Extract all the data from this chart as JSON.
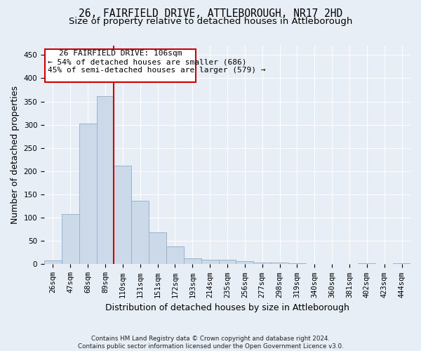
{
  "title_line1": "26, FAIRFIELD DRIVE, ATTLEBOROUGH, NR17 2HD",
  "title_line2": "Size of property relative to detached houses in Attleborough",
  "xlabel": "Distribution of detached houses by size in Attleborough",
  "ylabel": "Number of detached properties",
  "footnote": "Contains HM Land Registry data © Crown copyright and database right 2024.\nContains public sector information licensed under the Open Government Licence v3.0.",
  "annotation_line1": "26 FAIRFIELD DRIVE: 106sqm",
  "annotation_line2": "← 54% of detached houses are smaller (686)",
  "annotation_line3": "45% of semi-detached houses are larger (579) →",
  "bar_labels": [
    "26sqm",
    "47sqm",
    "68sqm",
    "89sqm",
    "110sqm",
    "131sqm",
    "151sqm",
    "172sqm",
    "193sqm",
    "214sqm",
    "235sqm",
    "256sqm",
    "277sqm",
    "298sqm",
    "319sqm",
    "340sqm",
    "360sqm",
    "381sqm",
    "402sqm",
    "423sqm",
    "444sqm"
  ],
  "bar_values": [
    8,
    108,
    302,
    362,
    212,
    136,
    68,
    38,
    13,
    10,
    9,
    6,
    3,
    3,
    2,
    0,
    0,
    0,
    2,
    0,
    2
  ],
  "bar_color": "#ccd9e8",
  "bar_edgecolor": "#9ab3cc",
  "vline_color": "#cc0000",
  "vline_pos": 3.5,
  "annotation_box_color": "#cc0000",
  "background_color": "#e8eef5",
  "grid_color": "#ffffff",
  "ylim": [
    0,
    470
  ],
  "yticks": [
    0,
    50,
    100,
    150,
    200,
    250,
    300,
    350,
    400,
    450
  ],
  "title_fontsize": 10.5,
  "subtitle_fontsize": 9.5,
  "ylabel_fontsize": 9,
  "xlabel_fontsize": 9,
  "tick_fontsize": 7.5,
  "annot_fontsize": 8
}
